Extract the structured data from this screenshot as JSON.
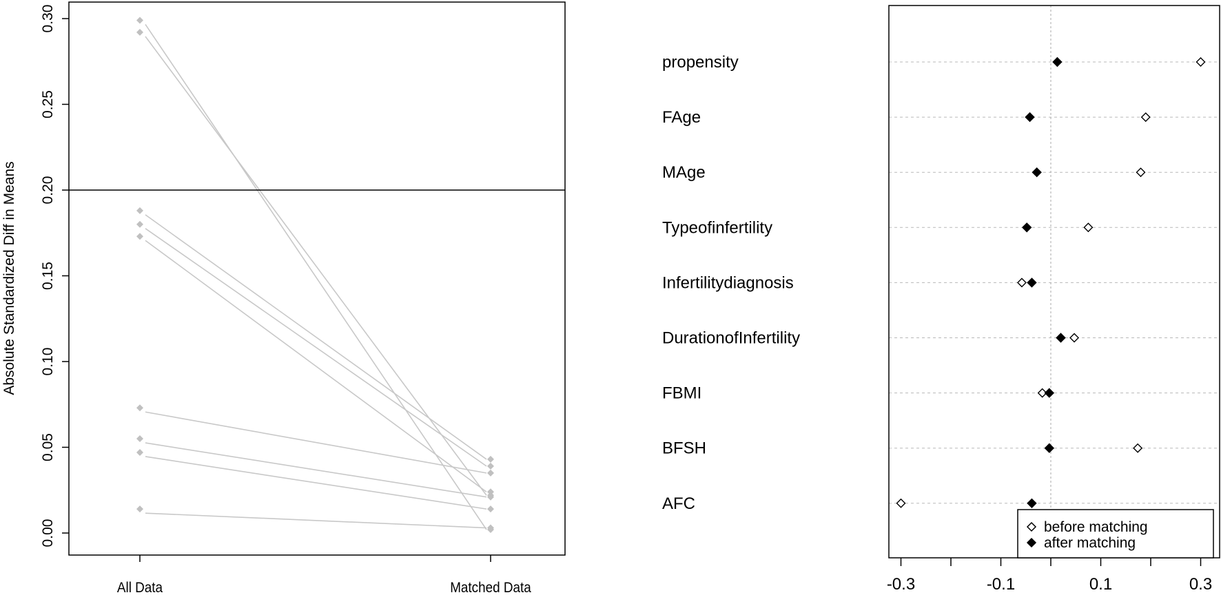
{
  "chart_data": [
    {
      "type": "line",
      "title": "",
      "xlabel": "",
      "ylabel": "Absolute Standardized Diff in Means",
      "categories": [
        "All Data",
        "Matched Data"
      ],
      "ylim": [
        -0.01,
        0.31
      ],
      "yticks": [
        "0.00",
        "0.05",
        "0.10",
        "0.15",
        "0.20",
        "0.25",
        "0.30"
      ],
      "ytick_values": [
        0,
        0.05,
        0.1,
        0.15,
        0.2,
        0.25,
        0.3
      ],
      "reference_line": 0.2,
      "series": [
        {
          "values": [
            0.299,
            0.002
          ]
        },
        {
          "values": [
            0.292,
            0.022
          ]
        },
        {
          "values": [
            0.188,
            0.043
          ]
        },
        {
          "values": [
            0.18,
            0.039
          ]
        },
        {
          "values": [
            0.173,
            0.024
          ]
        },
        {
          "values": [
            0.073,
            0.035
          ]
        },
        {
          "values": [
            0.055,
            0.021
          ]
        },
        {
          "values": [
            0.047,
            0.014
          ]
        },
        {
          "values": [
            0.014,
            0.003
          ]
        }
      ],
      "marker_color": "#c0c0c0",
      "line_color": "#c8c8c8"
    },
    {
      "type": "scatter",
      "title": "",
      "xlabel": "",
      "ylabel": "",
      "xlim": [
        -0.32,
        0.32
      ],
      "xticks": [
        "-0.3",
        "-0.1",
        "0.1",
        "0.3"
      ],
      "xtick_values": [
        -0.3,
        -0.1,
        0.1,
        0.3
      ],
      "reference_line": 0,
      "categories": [
        "propensity",
        "FAge",
        "MAge",
        "Typeofinfertility",
        "Infertilitydiagnosis",
        "DurationofInfertility",
        "FBMI",
        "BFSH",
        "AFC"
      ],
      "series": [
        {
          "name": "before matching",
          "marker": "open-diamond",
          "values": [
            0.3,
            0.19,
            0.18,
            0.075,
            -0.058,
            0.047,
            -0.017,
            0.174,
            -0.3
          ]
        },
        {
          "name": "after matching",
          "marker": "filled-diamond",
          "values": [
            0.013,
            -0.042,
            -0.028,
            -0.048,
            -0.038,
            0.02,
            -0.003,
            -0.003,
            -0.038
          ]
        }
      ],
      "legend_position": "bottom-right",
      "grid": "dotted-horizontal"
    }
  ]
}
